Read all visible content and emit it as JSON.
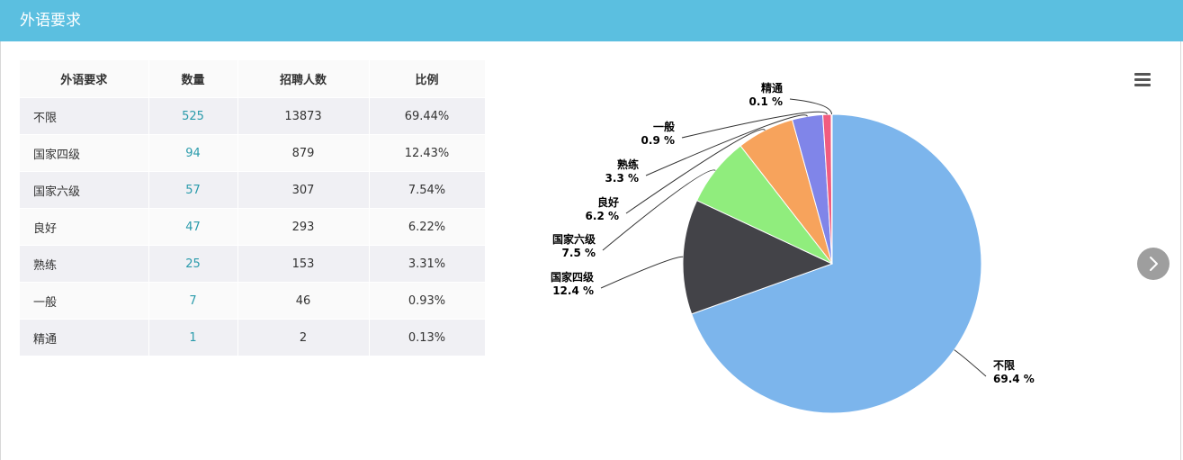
{
  "header": {
    "title": "外语要求"
  },
  "table": {
    "headers": [
      "外语要求",
      "数量",
      "招聘人数",
      "比例"
    ],
    "rows": [
      [
        "不限",
        "525",
        "13873",
        "69.44%"
      ],
      [
        "国家四级",
        "94",
        "879",
        "12.43%"
      ],
      [
        "国家六级",
        "57",
        "307",
        "7.54%"
      ],
      [
        "良好",
        "47",
        "293",
        "6.22%"
      ],
      [
        "熟练",
        "25",
        "153",
        "3.31%"
      ],
      [
        "一般",
        "7",
        "46",
        "0.93%"
      ],
      [
        "精通",
        "1",
        "2",
        "0.13%"
      ]
    ]
  },
  "icons": {
    "menu": "menu-icon",
    "next": "chevron-right-icon"
  },
  "chart_data": {
    "type": "pie",
    "categories": [
      "不限",
      "国家四级",
      "国家六级",
      "良好",
      "熟练",
      "一般",
      "精通"
    ],
    "values": [
      69.4,
      12.4,
      7.5,
      6.2,
      3.3,
      0.9,
      0.1
    ],
    "value_labels": [
      "69.4 %",
      "12.4 %",
      "7.5 %",
      "6.2 %",
      "3.3 %",
      "0.9 %",
      "0.1 %"
    ],
    "colors": [
      "#7cb5ec",
      "#434348",
      "#90ed7d",
      "#f7a35c",
      "#8085e9",
      "#f15c80",
      "#e4d354"
    ],
    "start": "12 o'clock, clockwise",
    "legend": "none"
  }
}
